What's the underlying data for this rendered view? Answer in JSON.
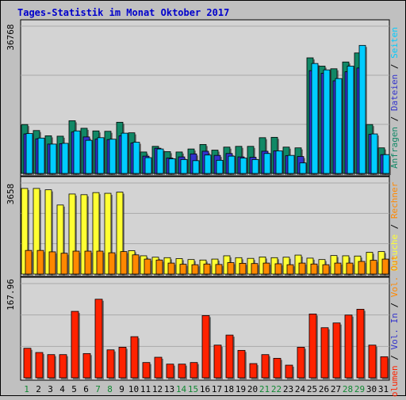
{
  "title": "Tages-Statistik im Monat Oktober 2017",
  "colors": {
    "background": "#c0c0c0",
    "panel": "#d3d3d3",
    "grid": "#a9a9a9",
    "title": "#0000cc",
    "hits": "#118866",
    "files": "#3333cc",
    "pages": "#00ccff",
    "visits": "#ffff33",
    "sites": "#ff8800",
    "kbytes": "#ff2200",
    "weekend_day": "#118833",
    "weekday": "#000000"
  },
  "chart_data": [
    {
      "type": "bar",
      "title": "Tages-Statistik im Monat Oktober 2017",
      "categories": [
        "1",
        "2",
        "3",
        "4",
        "5",
        "6",
        "7",
        "8",
        "9",
        "10",
        "11",
        "12",
        "13",
        "14",
        "15",
        "16",
        "17",
        "18",
        "19",
        "20",
        "21",
        "22",
        "23",
        "24",
        "25",
        "26",
        "27",
        "28",
        "29",
        "30",
        "31"
      ],
      "weekend_days": [
        "1",
        "7",
        "8",
        "14",
        "15",
        "21",
        "22",
        "28",
        "29"
      ],
      "ylabel_max": "36768",
      "ylim": [
        0,
        36768
      ],
      "legend": [
        "Anfragen",
        "Dateien",
        "Seiten"
      ],
      "series": [
        {
          "name": "Anfragen",
          "values": [
            13000,
            11400,
            10000,
            9900,
            14000,
            12000,
            11300,
            11200,
            13600,
            10800,
            5700,
            7200,
            5800,
            5700,
            6500,
            7700,
            6200,
            7000,
            7200,
            7200,
            9500,
            9600,
            7000,
            6800,
            30700,
            28500,
            27800,
            29600,
            32000,
            13000,
            6800
          ]
        },
        {
          "name": "Dateien",
          "values": [
            10500,
            9200,
            7800,
            7900,
            11000,
            9700,
            9100,
            9000,
            10000,
            8100,
            4600,
            6700,
            4100,
            4400,
            5200,
            5900,
            4800,
            5300,
            4400,
            4300,
            5900,
            6000,
            4700,
            4500,
            27300,
            26600,
            24600,
            27000,
            28000,
            10400,
            5000
          ]
        },
        {
          "name": "Seiten",
          "values": [
            10600,
            9400,
            7800,
            8000,
            11300,
            8800,
            9500,
            9100,
            10700,
            8300,
            4200,
            6500,
            3900,
            3700,
            3400,
            4900,
            3500,
            4600,
            4100,
            3700,
            5300,
            6000,
            4800,
            2800,
            29200,
            27500,
            25200,
            28500,
            34000,
            10500,
            5000
          ]
        }
      ]
    },
    {
      "type": "bar",
      "categories": [
        "1",
        "2",
        "3",
        "4",
        "5",
        "6",
        "7",
        "8",
        "9",
        "10",
        "11",
        "12",
        "13",
        "14",
        "15",
        "16",
        "17",
        "18",
        "19",
        "20",
        "21",
        "22",
        "23",
        "24",
        "25",
        "26",
        "27",
        "28",
        "29",
        "30",
        "31"
      ],
      "ylabel_max": "3658",
      "ylim": [
        0,
        3658
      ],
      "legend": [
        "Besuche",
        "Rechner"
      ],
      "series": [
        {
          "name": "Besuche",
          "values": [
            3658,
            3658,
            3600,
            2950,
            3420,
            3390,
            3480,
            3450,
            3500,
            1000,
            780,
            720,
            700,
            660,
            620,
            600,
            640,
            780,
            700,
            670,
            730,
            700,
            720,
            810,
            680,
            620,
            790,
            780,
            770,
            930,
            960
          ]
        },
        {
          "name": "Rechner",
          "values": [
            1010,
            1010,
            950,
            890,
            980,
            980,
            980,
            910,
            960,
            820,
            640,
            600,
            470,
            420,
            400,
            430,
            410,
            490,
            460,
            450,
            470,
            440,
            400,
            470,
            430,
            400,
            470,
            470,
            540,
            590,
            640
          ]
        }
      ]
    },
    {
      "type": "bar",
      "categories": [
        "1",
        "2",
        "3",
        "4",
        "5",
        "6",
        "7",
        "8",
        "9",
        "10",
        "11",
        "12",
        "13",
        "14",
        "15",
        "16",
        "17",
        "18",
        "19",
        "20",
        "21",
        "22",
        "23",
        "24",
        "25",
        "26",
        "27",
        "28",
        "29",
        "30",
        "31"
      ],
      "ylabel_max": "167.96",
      "ylim": [
        0,
        167.96
      ],
      "legend": [
        "Volumen",
        "Vol. In",
        "Vol. Out"
      ],
      "series": [
        {
          "name": "Volumen",
          "values": [
            56,
            48,
            44,
            44,
            126,
            46,
            149,
            53,
            58,
            78,
            29,
            39,
            26,
            26,
            29,
            118,
            62,
            81,
            52,
            27,
            44,
            37,
            24,
            58,
            121,
            95,
            104,
            119,
            130,
            62,
            40
          ]
        }
      ]
    }
  ]
}
